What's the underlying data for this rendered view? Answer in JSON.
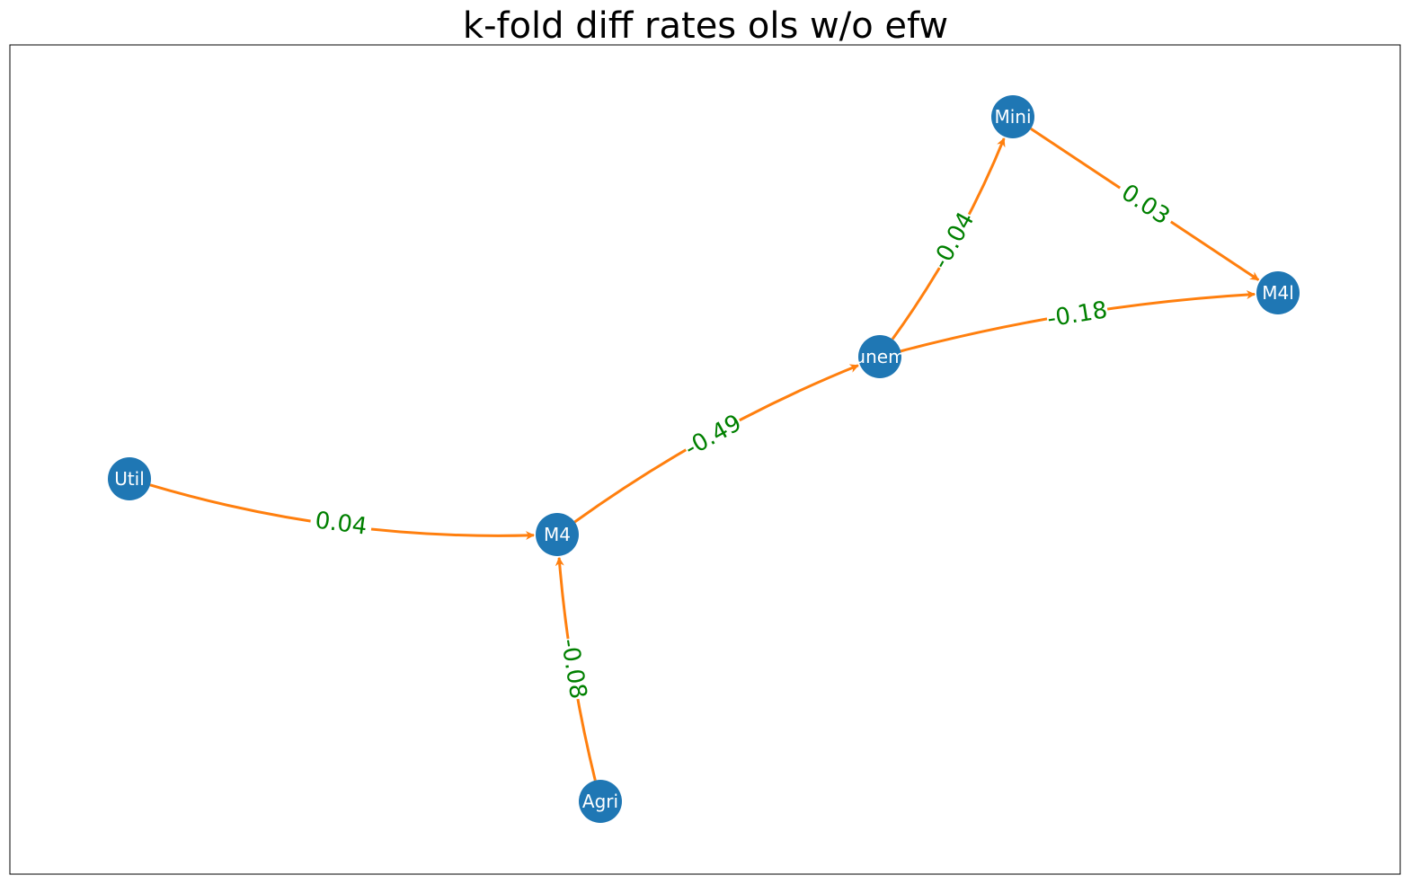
{
  "title": "k-fold diff rates ols w/o efw",
  "colors": {
    "node": "#1f77b4",
    "edge": "#ff7f0e",
    "edge_label": "#008000",
    "node_label": "#ffffff",
    "frame": "#000000"
  },
  "nodes": [
    {
      "id": "Util",
      "label": "Util"
    },
    {
      "id": "M4",
      "label": "M4"
    },
    {
      "id": "Agri",
      "label": "Agri"
    },
    {
      "id": "unem",
      "label": "unem"
    },
    {
      "id": "Mini",
      "label": "Mini"
    },
    {
      "id": "M4l",
      "label": "M4l"
    }
  ],
  "edges": [
    {
      "from": "Util",
      "to": "M4",
      "label": "0.04"
    },
    {
      "from": "Agri",
      "to": "M4",
      "label": "-0.08"
    },
    {
      "from": "M4",
      "to": "unem",
      "label": "-0.49"
    },
    {
      "from": "unem",
      "to": "Mini",
      "label": "-0.04"
    },
    {
      "from": "unem",
      "to": "M4l",
      "label": "-0.18"
    },
    {
      "from": "Mini",
      "to": "M4l",
      "label": "0.03"
    }
  ]
}
